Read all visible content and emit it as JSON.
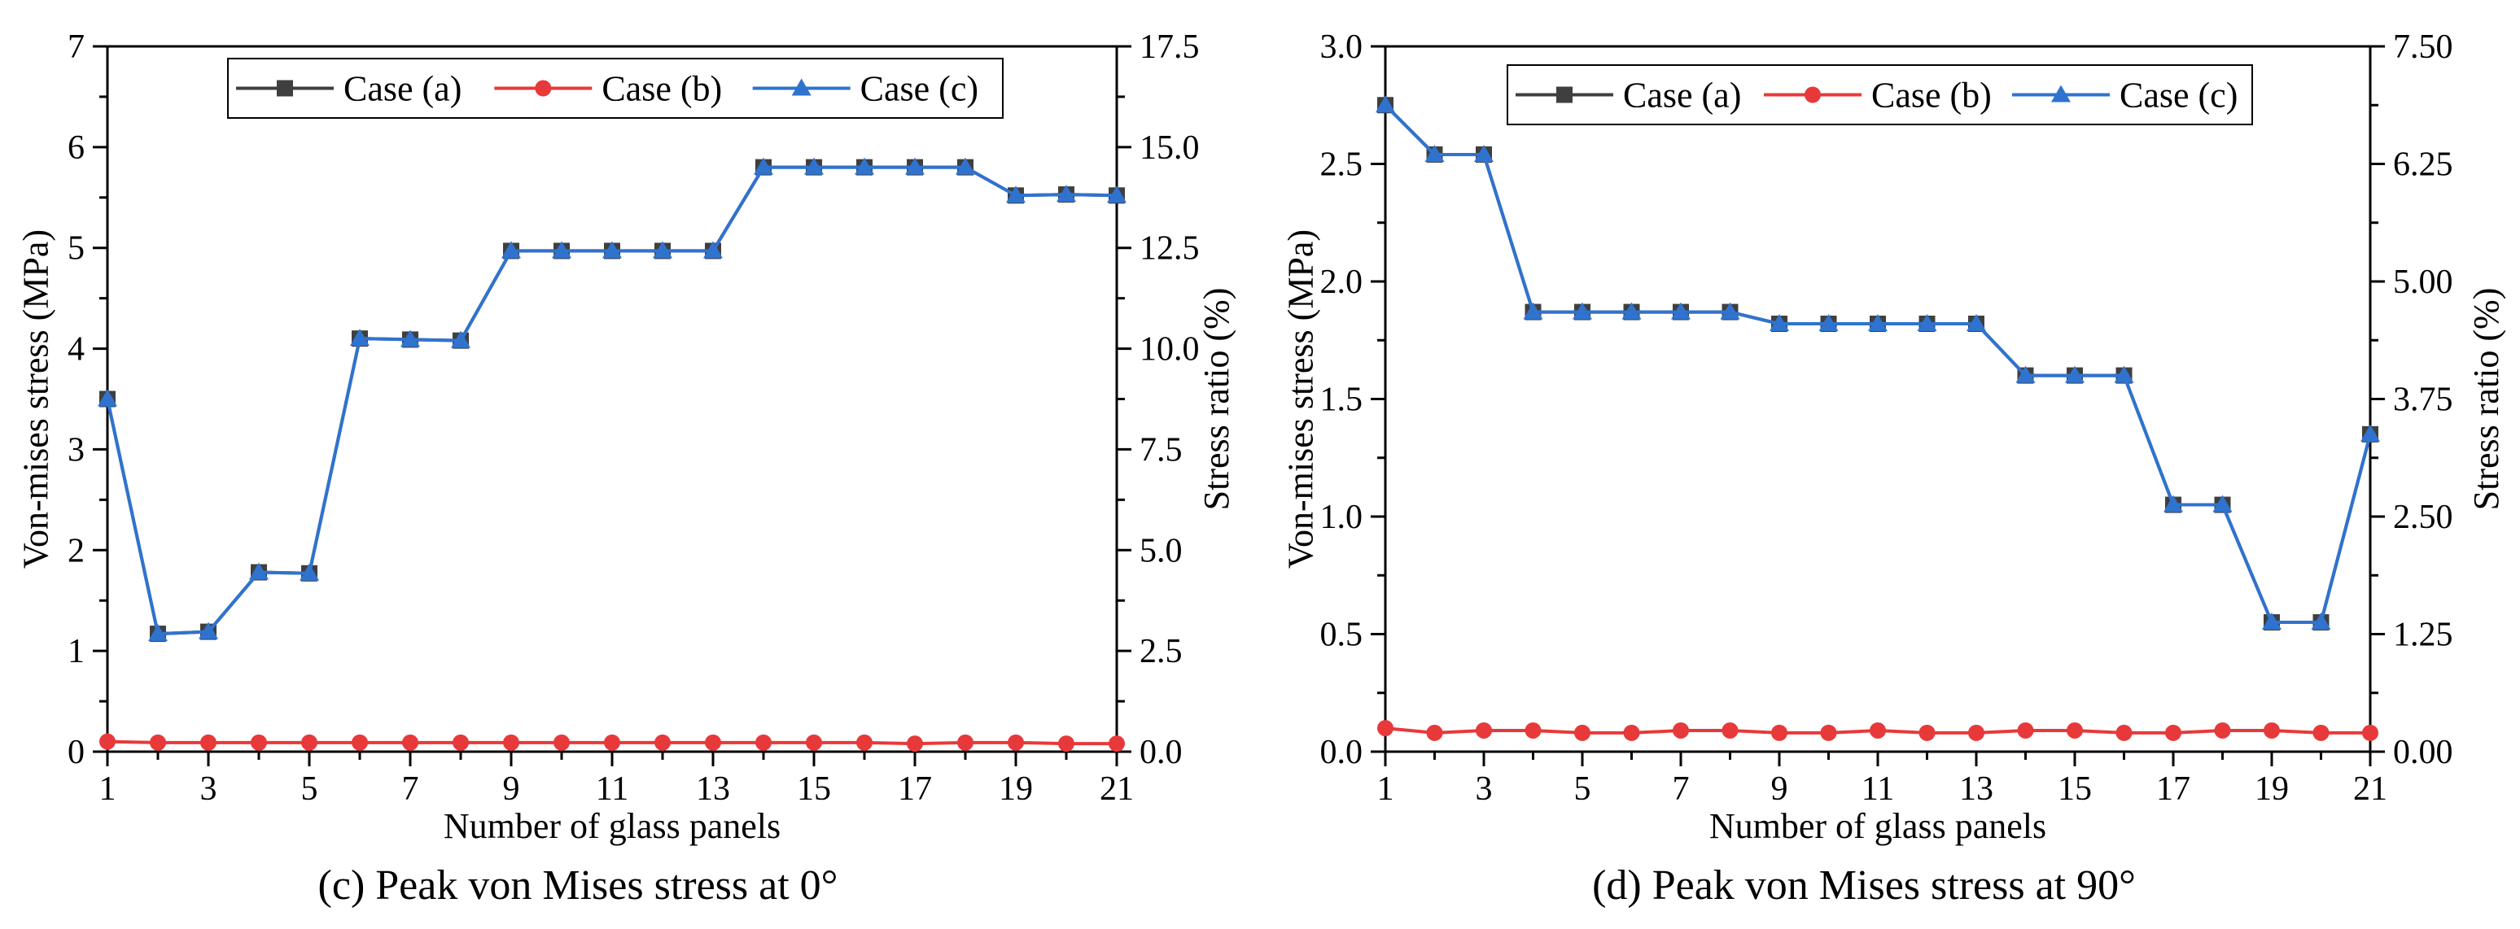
{
  "chart_data": [
    {
      "type": "line",
      "caption": "(c) Peak von Mises stress at 0°",
      "xlabel": "Number of glass panels",
      "ylabel": "Von-mises stress (MPa)",
      "y2label": "Stress ratio (%)",
      "xlim": [
        1,
        21
      ],
      "ylim": [
        0,
        7
      ],
      "y2lim": [
        0,
        17.5
      ],
      "xticks": [
        "1",
        "3",
        "5",
        "7",
        "9",
        "11",
        "13",
        "15",
        "17",
        "19",
        "21"
      ],
      "yticks": [
        "0",
        "1",
        "2",
        "3",
        "4",
        "5",
        "6",
        "7"
      ],
      "y2ticks": [
        "0.0",
        "2.5",
        "5.0",
        "7.5",
        "10.0",
        "12.5",
        "15.0",
        "17.5"
      ],
      "legend_position": "top",
      "x": [
        1,
        2,
        3,
        4,
        5,
        6,
        7,
        8,
        9,
        10,
        11,
        12,
        13,
        14,
        15,
        16,
        17,
        18,
        19,
        20,
        21
      ],
      "series": [
        {
          "name": "Case (a)",
          "color": "#3f3f3f",
          "marker": "square",
          "values": [
            3.5,
            1.17,
            1.19,
            1.78,
            1.77,
            4.1,
            4.09,
            4.08,
            4.97,
            4.97,
            4.97,
            4.97,
            4.97,
            5.8,
            5.8,
            5.8,
            5.8,
            5.8,
            5.52,
            5.53,
            5.52
          ]
        },
        {
          "name": "Case (b)",
          "color": "#e8393a",
          "marker": "circle",
          "values": [
            0.1,
            0.09,
            0.09,
            0.09,
            0.09,
            0.09,
            0.09,
            0.09,
            0.09,
            0.09,
            0.09,
            0.09,
            0.09,
            0.09,
            0.09,
            0.09,
            0.08,
            0.09,
            0.09,
            0.08,
            0.08
          ]
        },
        {
          "name": "Case (c)",
          "color": "#2f73cf",
          "marker": "triangle",
          "values": [
            3.5,
            1.17,
            1.19,
            1.78,
            1.77,
            4.1,
            4.09,
            4.08,
            4.97,
            4.97,
            4.97,
            4.97,
            4.97,
            5.8,
            5.8,
            5.8,
            5.8,
            5.8,
            5.52,
            5.53,
            5.52
          ]
        }
      ]
    },
    {
      "type": "line",
      "caption": "(d) Peak von Mises stress at 90°",
      "xlabel": "Number of glass panels",
      "ylabel": "Von-mises stress (MPa)",
      "y2label": "Stress ratio (%)",
      "xlim": [
        1,
        21
      ],
      "ylim": [
        0,
        3
      ],
      "y2lim": [
        0,
        7.5
      ],
      "xticks": [
        "1",
        "3",
        "5",
        "7",
        "9",
        "11",
        "13",
        "15",
        "17",
        "19",
        "21"
      ],
      "yticks": [
        "0.0",
        "0.5",
        "1.0",
        "1.5",
        "2.0",
        "2.5",
        "3.0"
      ],
      "y2ticks": [
        "0.00",
        "1.25",
        "2.50",
        "3.75",
        "5.00",
        "6.25",
        "7.50"
      ],
      "legend_position": "top",
      "x": [
        1,
        2,
        3,
        4,
        5,
        6,
        7,
        8,
        9,
        10,
        11,
        12,
        13,
        14,
        15,
        16,
        17,
        18,
        19,
        20,
        21
      ],
      "series": [
        {
          "name": "Case (a)",
          "color": "#3f3f3f",
          "marker": "square",
          "values": [
            2.75,
            2.54,
            2.54,
            1.87,
            1.87,
            1.87,
            1.87,
            1.87,
            1.82,
            1.82,
            1.82,
            1.82,
            1.82,
            1.6,
            1.6,
            1.6,
            1.05,
            1.05,
            0.55,
            0.55,
            1.35
          ]
        },
        {
          "name": "Case (b)",
          "color": "#e8393a",
          "marker": "circle",
          "values": [
            0.1,
            0.08,
            0.09,
            0.09,
            0.08,
            0.08,
            0.09,
            0.09,
            0.08,
            0.08,
            0.09,
            0.08,
            0.08,
            0.09,
            0.09,
            0.08,
            0.08,
            0.09,
            0.09,
            0.08,
            0.08
          ]
        },
        {
          "name": "Case (c)",
          "color": "#2f73cf",
          "marker": "triangle",
          "values": [
            2.75,
            2.54,
            2.54,
            1.87,
            1.87,
            1.87,
            1.87,
            1.87,
            1.82,
            1.82,
            1.82,
            1.82,
            1.82,
            1.6,
            1.6,
            1.6,
            1.05,
            1.05,
            0.55,
            0.55,
            1.35
          ]
        }
      ]
    }
  ]
}
